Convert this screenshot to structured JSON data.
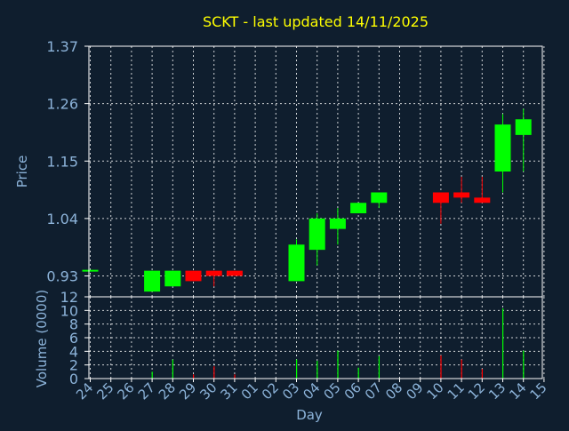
{
  "chart_data": {
    "type": "candlestick",
    "title": "SCKT - last updated 14/11/2025",
    "xlabel": "Day",
    "colors": {
      "background": "#0f1e2e",
      "axis": "#ffffff",
      "grid": "#ffffff",
      "up": "#00ff00",
      "down": "#ff0000",
      "text": "#8cb3d9",
      "title": "#ffff00"
    },
    "x_ticks": [
      "24",
      "25",
      "26",
      "27",
      "28",
      "29",
      "30",
      "31",
      "01",
      "02",
      "03",
      "04",
      "05",
      "06",
      "07",
      "08",
      "09",
      "10",
      "11",
      "12",
      "13",
      "14",
      "15"
    ],
    "price_panel": {
      "ylabel": "Price",
      "ylim": [
        0.89,
        1.37
      ],
      "yticks": [
        "0.93",
        "1.04",
        "1.15",
        "1.26",
        "1.37"
      ],
      "grid": true,
      "candles": [
        {
          "day": "24",
          "open": 0.94,
          "high": 0.94,
          "low": 0.94,
          "close": 0.94
        },
        {
          "day": "27",
          "open": 0.9,
          "high": 0.94,
          "low": 0.9,
          "close": 0.94
        },
        {
          "day": "28",
          "open": 0.91,
          "high": 0.94,
          "low": 0.91,
          "close": 0.94
        },
        {
          "day": "29",
          "open": 0.94,
          "high": 0.94,
          "low": 0.92,
          "close": 0.92
        },
        {
          "day": "30",
          "open": 0.94,
          "high": 0.94,
          "low": 0.91,
          "close": 0.93
        },
        {
          "day": "31",
          "open": 0.94,
          "high": 0.94,
          "low": 0.93,
          "close": 0.93
        },
        {
          "day": "03",
          "open": 0.92,
          "high": 1.0,
          "low": 0.92,
          "close": 0.99
        },
        {
          "day": "04",
          "open": 0.98,
          "high": 1.05,
          "low": 0.95,
          "close": 1.04
        },
        {
          "day": "05",
          "open": 1.02,
          "high": 1.06,
          "low": 0.99,
          "close": 1.04
        },
        {
          "day": "06",
          "open": 1.05,
          "high": 1.07,
          "low": 1.05,
          "close": 1.07
        },
        {
          "day": "07",
          "open": 1.07,
          "high": 1.09,
          "low": 1.06,
          "close": 1.09
        },
        {
          "day": "10",
          "open": 1.09,
          "high": 1.09,
          "low": 1.03,
          "close": 1.07
        },
        {
          "day": "11",
          "open": 1.09,
          "high": 1.12,
          "low": 1.07,
          "close": 1.08
        },
        {
          "day": "12",
          "open": 1.08,
          "high": 1.12,
          "low": 1.07,
          "close": 1.07
        },
        {
          "day": "13",
          "open": 1.13,
          "high": 1.24,
          "low": 1.09,
          "close": 1.22
        },
        {
          "day": "14",
          "open": 1.2,
          "high": 1.25,
          "low": 1.13,
          "close": 1.23
        }
      ]
    },
    "volume_panel": {
      "ylabel": "Volume (0000)",
      "ylim": [
        0,
        12
      ],
      "yticks": [
        "0",
        "2",
        "4",
        "6",
        "8",
        "10",
        "12"
      ],
      "grid": true,
      "bars": [
        {
          "day": "27",
          "value": 1.0,
          "up": true
        },
        {
          "day": "28",
          "value": 2.8,
          "up": true
        },
        {
          "day": "29",
          "value": 0.6,
          "up": false
        },
        {
          "day": "30",
          "value": 1.8,
          "up": false
        },
        {
          "day": "31",
          "value": 0.6,
          "up": false
        },
        {
          "day": "03",
          "value": 2.8,
          "up": true
        },
        {
          "day": "04",
          "value": 2.6,
          "up": true
        },
        {
          "day": "05",
          "value": 4.1,
          "up": true
        },
        {
          "day": "06",
          "value": 1.6,
          "up": true
        },
        {
          "day": "07",
          "value": 3.3,
          "up": true
        },
        {
          "day": "10",
          "value": 3.4,
          "up": false
        },
        {
          "day": "11",
          "value": 2.8,
          "up": false
        },
        {
          "day": "12",
          "value": 1.4,
          "up": false
        },
        {
          "day": "13",
          "value": 10.3,
          "up": true
        },
        {
          "day": "14",
          "value": 4.1,
          "up": true
        }
      ]
    }
  }
}
